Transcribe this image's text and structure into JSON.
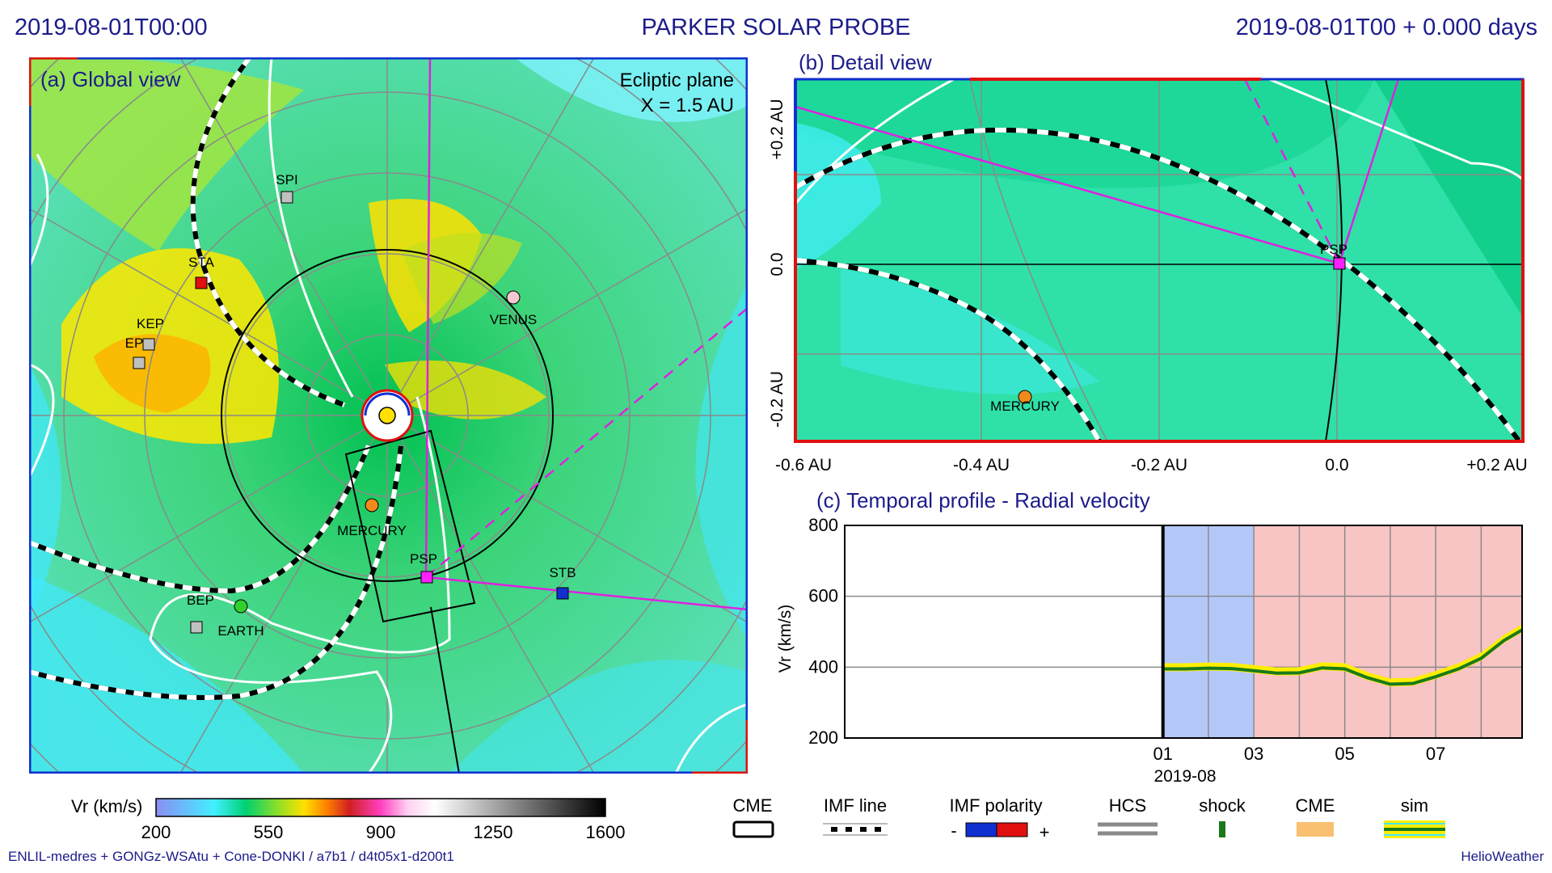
{
  "header": {
    "datetime": "2019-08-01T00:00",
    "title": "PARKER SOLAR PROBE",
    "elapsed": "2019-08-01T00 +  0.000 days"
  },
  "panel_a": {
    "title": "(a) Global view",
    "plane": "Ecliptic plane",
    "extent": "X = 1.5 AU",
    "bodies": [
      {
        "name": "SPI",
        "marker": "square",
        "color": "#c0c0c0"
      },
      {
        "name": "STA",
        "marker": "square",
        "color": "#e01010"
      },
      {
        "name": "KEP",
        "marker": "square",
        "color": "#c0c0c0"
      },
      {
        "name": "EP",
        "marker": "square",
        "color": "#c0c0c0"
      },
      {
        "name": "VENUS",
        "marker": "circle",
        "color": "#f4c8d0"
      },
      {
        "name": "MERCURY",
        "marker": "circle",
        "color": "#f08a1a"
      },
      {
        "name": "PSP",
        "marker": "square",
        "color": "#ff20ff"
      },
      {
        "name": "STB",
        "marker": "square",
        "color": "#1030d0"
      },
      {
        "name": "BEP",
        "marker": "square",
        "color": "#c0c0c0"
      },
      {
        "name": "EARTH",
        "marker": "circle",
        "color": "#30d030"
      }
    ]
  },
  "panel_b": {
    "title": "(b) Detail view",
    "x_ticks": [
      "-0.6 AU",
      "-0.4 AU",
      "-0.2 AU",
      "0.0",
      "+0.2 AU"
    ],
    "y_ticks": [
      "+0.2 AU",
      "0.0",
      "-0.2 AU"
    ],
    "bodies": [
      {
        "name": "PSP",
        "marker": "square",
        "color": "#ff20ff"
      },
      {
        "name": "MERCURY",
        "marker": "circle",
        "color": "#f08a1a"
      }
    ]
  },
  "panel_c": {
    "title": "(c) Temporal profile - Radial velocity"
  },
  "chart_data": {
    "type": "line",
    "title": "(c) Temporal profile - Radial velocity",
    "ylabel": "Vr (km/s)",
    "xlabel": "2019-08",
    "ylim": [
      200,
      800
    ],
    "y_ticks": [
      200,
      400,
      600,
      800
    ],
    "x_ticks": [
      "01",
      "03",
      "05",
      "07"
    ],
    "x_range_days": [
      -7,
      7.9
    ],
    "shaded_intervals": [
      {
        "from_day": 0,
        "to_day": 2,
        "color": "#b4c8f8"
      },
      {
        "from_day": 2,
        "to_day": 7.9,
        "color": "#f8c4c4"
      }
    ],
    "series": [
      {
        "color": "#1a7a1a",
        "x": [
          0,
          0.5,
          1,
          1.5,
          2,
          2.5,
          3,
          3.5,
          4,
          4.5,
          5,
          5.5,
          6,
          6.5,
          7,
          7.5,
          7.9
        ],
        "values": [
          395,
          395,
          397,
          396,
          390,
          383,
          384,
          398,
          395,
          370,
          352,
          354,
          373,
          395,
          425,
          475,
          505
        ]
      }
    ]
  },
  "legend": {
    "colorbar_label": "Vr (km/s)",
    "colorbar_ticks": [
      "200",
      "550",
      "900",
      "1250",
      "1600"
    ],
    "items": [
      {
        "label": "CME"
      },
      {
        "label": "IMF line"
      },
      {
        "label": "IMF polarity",
        "minus": "-",
        "plus": "+"
      },
      {
        "label": "HCS"
      },
      {
        "label": "shock"
      },
      {
        "label": "CME"
      },
      {
        "label": "sim"
      }
    ]
  },
  "footer": {
    "model": "ENLIL-medres + GONGz-WSAtu + Cone-DONKI / a7b1 / d4t05x1-d200t1",
    "credit": "HelioWeather"
  }
}
